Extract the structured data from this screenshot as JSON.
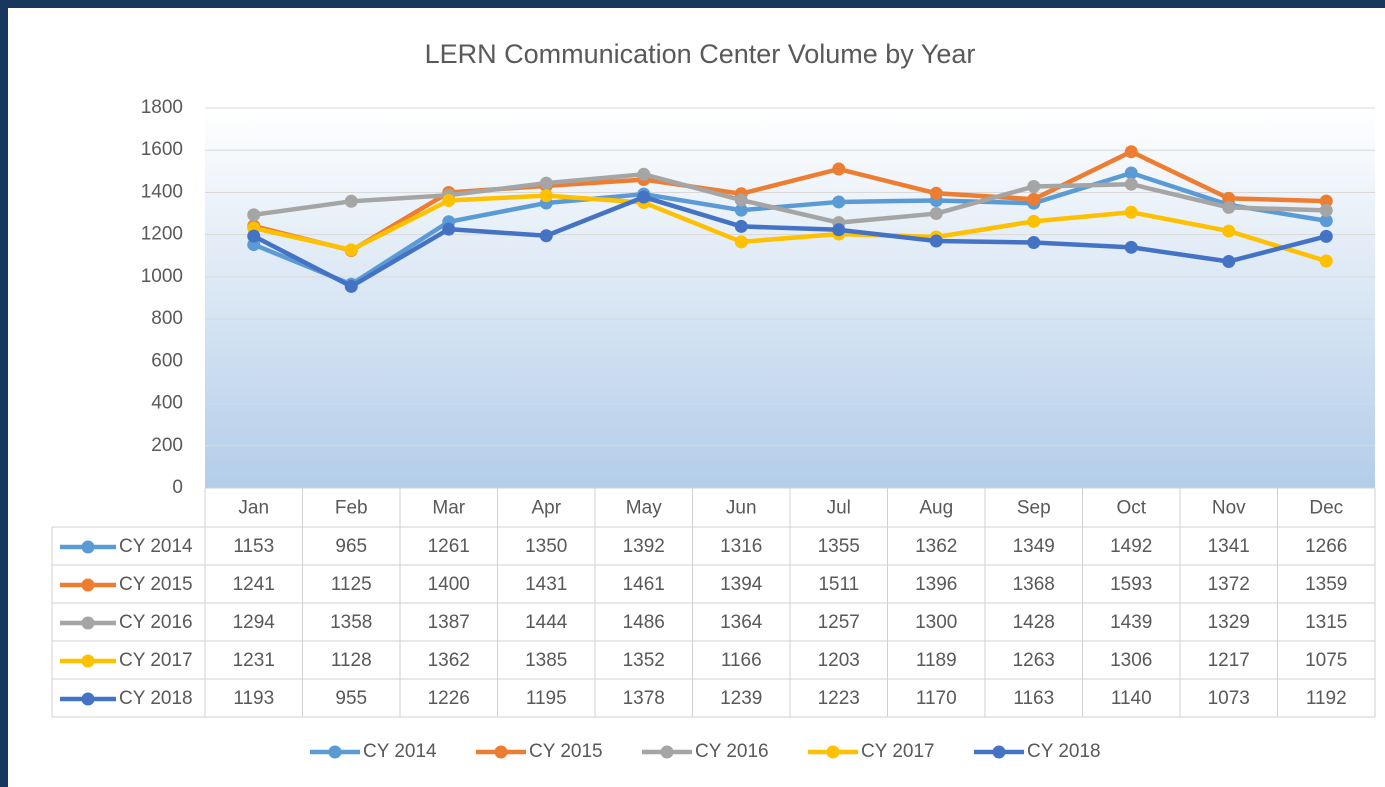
{
  "chart_data": {
    "type": "line",
    "title": "LERN Communication Center Volume by Year",
    "categories": [
      "Jan",
      "Feb",
      "Mar",
      "Apr",
      "May",
      "Jun",
      "Jul",
      "Aug",
      "Sep",
      "Oct",
      "Nov",
      "Dec"
    ],
    "series": [
      {
        "name": "CY 2014",
        "color": "#5b9bd5",
        "values": [
          1153,
          965,
          1261,
          1350,
          1392,
          1316,
          1355,
          1362,
          1349,
          1492,
          1341,
          1266
        ]
      },
      {
        "name": "CY 2015",
        "color": "#ed7d31",
        "values": [
          1241,
          1125,
          1400,
          1431,
          1461,
          1394,
          1511,
          1396,
          1368,
          1593,
          1372,
          1359
        ]
      },
      {
        "name": "CY 2016",
        "color": "#a5a5a5",
        "values": [
          1294,
          1358,
          1387,
          1444,
          1486,
          1364,
          1257,
          1300,
          1428,
          1439,
          1329,
          1315
        ]
      },
      {
        "name": "CY 2017",
        "color": "#ffc000",
        "values": [
          1231,
          1128,
          1362,
          1385,
          1352,
          1166,
          1203,
          1189,
          1263,
          1306,
          1217,
          1075
        ]
      },
      {
        "name": "CY 2018",
        "color": "#4472c4",
        "values": [
          1193,
          955,
          1226,
          1195,
          1378,
          1239,
          1223,
          1170,
          1163,
          1140,
          1073,
          1192
        ]
      }
    ],
    "ylim": [
      0,
      1800
    ],
    "yticks": [
      0,
      200,
      400,
      600,
      800,
      1000,
      1200,
      1400,
      1600,
      1800
    ],
    "grid": true,
    "legend": "bottom"
  }
}
